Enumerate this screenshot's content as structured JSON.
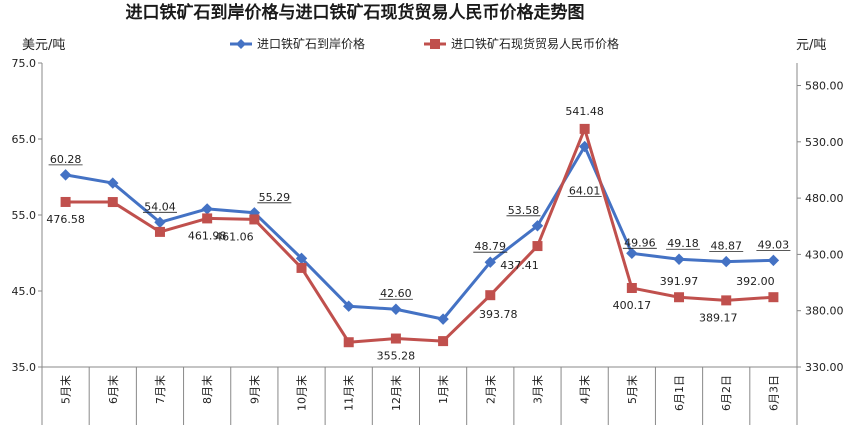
{
  "chart_data": {
    "type": "line",
    "title": "进口铁矿石到岸价格与进口铁矿石现货贸易人民币价格走势图",
    "ylabel_left": "美元/吨",
    "ylabel_right": "元/吨",
    "ylim_left": [
      35,
      75
    ],
    "yticks_left": [
      "35.0",
      "45.0",
      "55.0",
      "65.0",
      "75.0"
    ],
    "ylim_right": [
      330,
      600
    ],
    "yticks_right": [
      "330.00",
      "380.00",
      "430.00",
      "480.00",
      "530.00",
      "580.00"
    ],
    "categories": [
      "5月末",
      "6月末",
      "7月末",
      "8月末",
      "9月末",
      "10月末",
      "11月末",
      "12月末",
      "1月末",
      "2月末",
      "3月末",
      "4月末",
      "5月末",
      "6月1日",
      "6月2日",
      "6月3日"
    ],
    "grid": false,
    "legend_position": "top",
    "series": [
      {
        "name": "进口铁矿石到岸价格",
        "axis": "left",
        "color": "#4472c4",
        "marker": "diamond",
        "values": [
          60.28,
          59.2,
          54.04,
          55.8,
          55.29,
          49.3,
          43.0,
          42.6,
          41.3,
          48.79,
          53.58,
          64.01,
          49.96,
          49.18,
          48.87,
          49.03
        ],
        "labels": [
          "60.28",
          "",
          "54.04",
          "",
          "55.29",
          "",
          "",
          "42.60",
          "",
          "48.79",
          "53.58",
          "64.01",
          "49.96",
          "49.18",
          "48.87",
          "49.03"
        ]
      },
      {
        "name": "进口铁矿石现货贸易人民币价格",
        "axis": "right",
        "color": "#c0504d",
        "marker": "square",
        "values": [
          476.58,
          476.5,
          450.0,
          461.98,
          461.06,
          418.0,
          352.0,
          355.28,
          353.0,
          393.78,
          437.41,
          541.48,
          400.17,
          391.97,
          389.17,
          392.0
        ],
        "labels": [
          "476.58",
          "",
          "",
          "461.98",
          "461.06",
          "",
          "",
          "355.28",
          "",
          "393.78",
          "437.41",
          "541.48",
          "400.17",
          "391.97",
          "389.17",
          "392.00"
        ]
      }
    ]
  }
}
